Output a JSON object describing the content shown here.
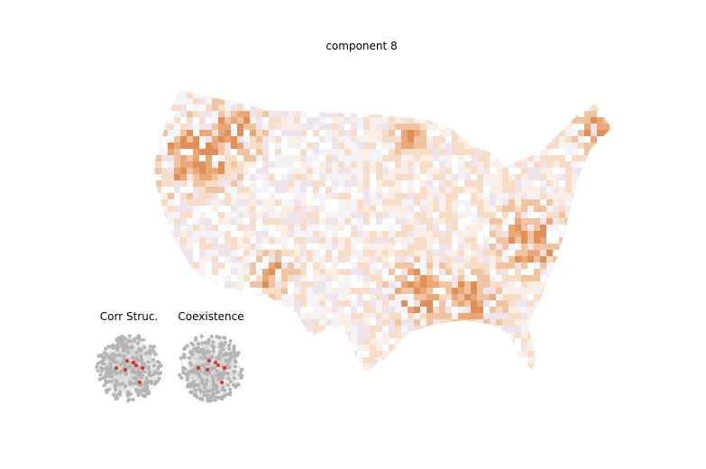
{
  "title": "component 8",
  "insets": [
    {
      "label": "Corr Struc."
    },
    {
      "label": "Coexistence"
    }
  ]
}
